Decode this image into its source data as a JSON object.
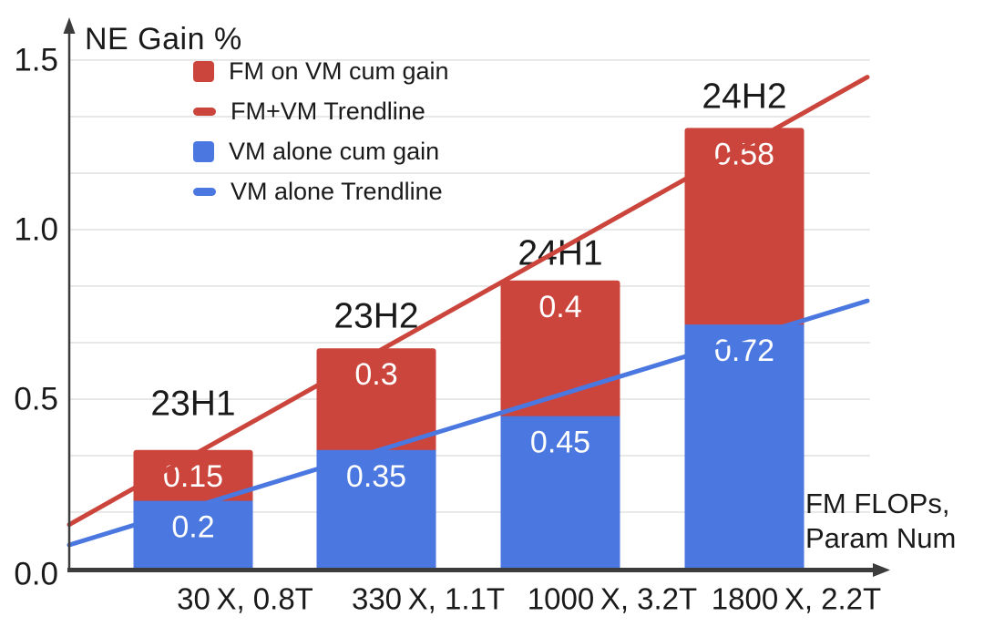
{
  "y_axis_title": "NE Gain %",
  "x_axis_title": {
    "line1": "FM FLOPs,",
    "line2": "Param Num"
  },
  "colors": {
    "red": "#CB453C",
    "blue": "#4B77E0",
    "grid": "#E0E0E0",
    "axis": "#3C3C3C",
    "text": "#1A1A1A",
    "value_label": "#FFFFFF"
  },
  "legend": {
    "items": [
      {
        "label": "FM on VM cum gain",
        "swatch": "square",
        "color_key": "red"
      },
      {
        "label": "FM+VM Trendline",
        "swatch": "dash",
        "color_key": "red"
      },
      {
        "label": "VM alone cum gain",
        "swatch": "square",
        "color_key": "blue"
      },
      {
        "label": "VM alone Trendline",
        "swatch": "dash",
        "color_key": "blue"
      }
    ]
  },
  "chart_data": {
    "type": "bar",
    "stacked": true,
    "title": "",
    "ylabel": "NE Gain %",
    "xlabel": "FM FLOPs, Param Num",
    "categories": [
      "30 X, 0.8T",
      "330 X, 1.1T",
      "1000 X, 3.2T",
      "1800 X, 2.2T"
    ],
    "bar_period_labels": [
      "23H1",
      "23H2",
      "24H1",
      "24H2"
    ],
    "series": [
      {
        "name": "VM alone cum gain",
        "color_key": "blue",
        "values": [
          0.2,
          0.35,
          0.45,
          0.72
        ]
      },
      {
        "name": "FM on VM cum gain",
        "color_key": "red",
        "values": [
          0.15,
          0.3,
          0.4,
          0.58
        ]
      }
    ],
    "trendlines": [
      {
        "name": "FM+VM Trendline",
        "color_key": "red",
        "start_value": 0.13,
        "end_value": 1.45
      },
      {
        "name": "VM alone Trendline",
        "color_key": "blue",
        "start_value": 0.07,
        "end_value": 0.79
      }
    ],
    "y_ticks": [
      {
        "label": "0.0",
        "value": 0.0
      },
      {
        "label": "0.5",
        "value": 0.5
      },
      {
        "label": "1.0",
        "value": 1.0
      },
      {
        "label": "1.5",
        "value": 1.5
      }
    ],
    "ylim": [
      0,
      1.5
    ],
    "grid_divisions_per_tick": 3,
    "grid_on": true,
    "legend_position": "top-left-inside"
  }
}
